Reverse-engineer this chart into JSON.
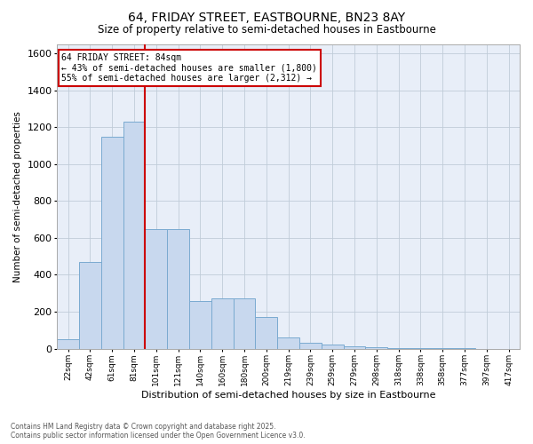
{
  "title": "64, FRIDAY STREET, EASTBOURNE, BN23 8AY",
  "subtitle": "Size of property relative to semi-detached houses in Eastbourne",
  "xlabel": "Distribution of semi-detached houses by size in Eastbourne",
  "ylabel": "Number of semi-detached properties",
  "bar_color": "#c8d8ee",
  "bar_edge_color": "#7aaad0",
  "plot_bg_color": "#e8eef8",
  "fig_bg_color": "#ffffff",
  "grid_color": "#c0ccd8",
  "vline_color": "#cc0000",
  "vline_bin_index": 3,
  "annotation_text": "64 FRIDAY STREET: 84sqm\n← 43% of semi-detached houses are smaller (1,800)\n55% of semi-detached houses are larger (2,312) →",
  "footnote": "Contains HM Land Registry data © Crown copyright and database right 2025.\nContains public sector information licensed under the Open Government Licence v3.0.",
  "bin_labels": [
    "22sqm",
    "42sqm",
    "61sqm",
    "81sqm",
    "101sqm",
    "121sqm",
    "140sqm",
    "160sqm",
    "180sqm",
    "200sqm",
    "219sqm",
    "239sqm",
    "259sqm",
    "279sqm",
    "298sqm",
    "318sqm",
    "338sqm",
    "358sqm",
    "377sqm",
    "397sqm",
    "417sqm"
  ],
  "counts": [
    50,
    470,
    1150,
    1230,
    650,
    650,
    260,
    270,
    270,
    170,
    60,
    30,
    20,
    10,
    5,
    3,
    2,
    1,
    1,
    0,
    0
  ],
  "ylim": [
    0,
    1650
  ],
  "yticks": [
    0,
    200,
    400,
    600,
    800,
    1000,
    1200,
    1400,
    1600
  ]
}
